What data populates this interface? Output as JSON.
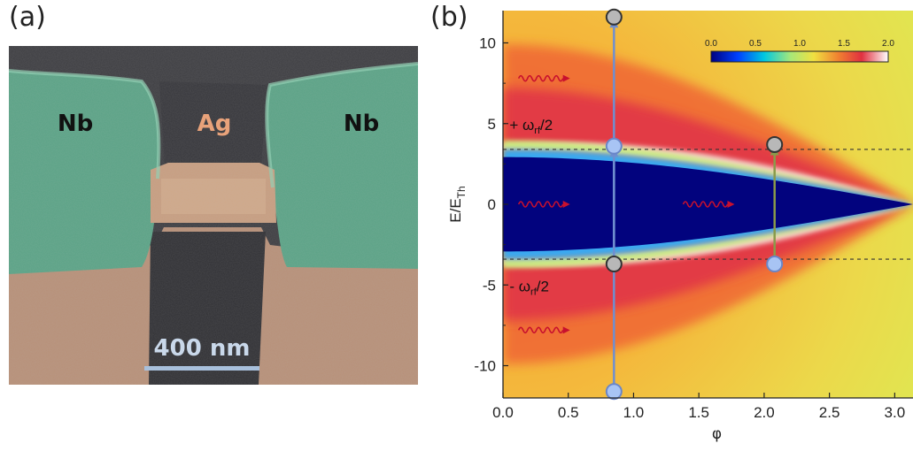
{
  "panels": {
    "a_label": "(a)",
    "b_label": "(b)"
  },
  "sem": {
    "left_contact": "Nb",
    "center_label": "Ag",
    "right_contact": "Nb",
    "scale_bar": "400 nm",
    "colors": {
      "nb": "#5fa98a",
      "ag": "#c79d7f",
      "background": "#3a3a3e"
    }
  },
  "chart_data": {
    "type": "heatmap",
    "xlabel": "φ",
    "ylabel": "E/E",
    "ylabel_sub": "Th",
    "xlim": [
      0.0,
      3.14
    ],
    "ylim": [
      -12,
      12
    ],
    "xticks": [
      "0.0",
      "0.5",
      "1.0",
      "1.5",
      "2.0",
      "2.5",
      "3.0"
    ],
    "yticks": [
      "10",
      "5",
      "0",
      "-5",
      "-10"
    ],
    "colorbar": {
      "range": [
        0.0,
        2.0
      ],
      "ticks": [
        "0.0",
        "0.5",
        "1.0",
        "1.5",
        "2.0"
      ],
      "placement": "top-right"
    },
    "minigap_edge_at_phi0": 3.4,
    "dashed_lines_y": [
      3.4,
      -3.4
    ],
    "annotations": [
      {
        "text": "+ ω",
        "sub": "rf",
        "tail": "/2",
        "x": 0.05,
        "y": 4.6
      },
      {
        "text": "- ω",
        "sub": "rf",
        "tail": "/2",
        "x": 0.05,
        "y": -5.4
      }
    ],
    "transitions": [
      {
        "x": 0.85,
        "from": -11.6,
        "to": 3.6,
        "style": "solid"
      },
      {
        "x": 0.85,
        "from": -3.7,
        "to": 11.6,
        "style": "solid"
      },
      {
        "x": 2.08,
        "from": -3.7,
        "to": 3.7,
        "style": "solid"
      }
    ],
    "markers": [
      {
        "x": 0.85,
        "y": 11.6,
        "kind": "grey"
      },
      {
        "x": 0.85,
        "y": 3.6,
        "kind": "blue"
      },
      {
        "x": 0.85,
        "y": -3.7,
        "kind": "grey"
      },
      {
        "x": 0.85,
        "y": -11.6,
        "kind": "blue"
      },
      {
        "x": 2.08,
        "y": 3.7,
        "kind": "grey"
      },
      {
        "x": 2.08,
        "y": -3.7,
        "kind": "blue"
      }
    ],
    "wavy_arrows": [
      {
        "x": 0.12,
        "y": 7.8
      },
      {
        "x": 0.12,
        "y": 0.0
      },
      {
        "x": 1.38,
        "y": 0.0
      },
      {
        "x": 0.12,
        "y": -7.8
      }
    ],
    "grid": false
  }
}
